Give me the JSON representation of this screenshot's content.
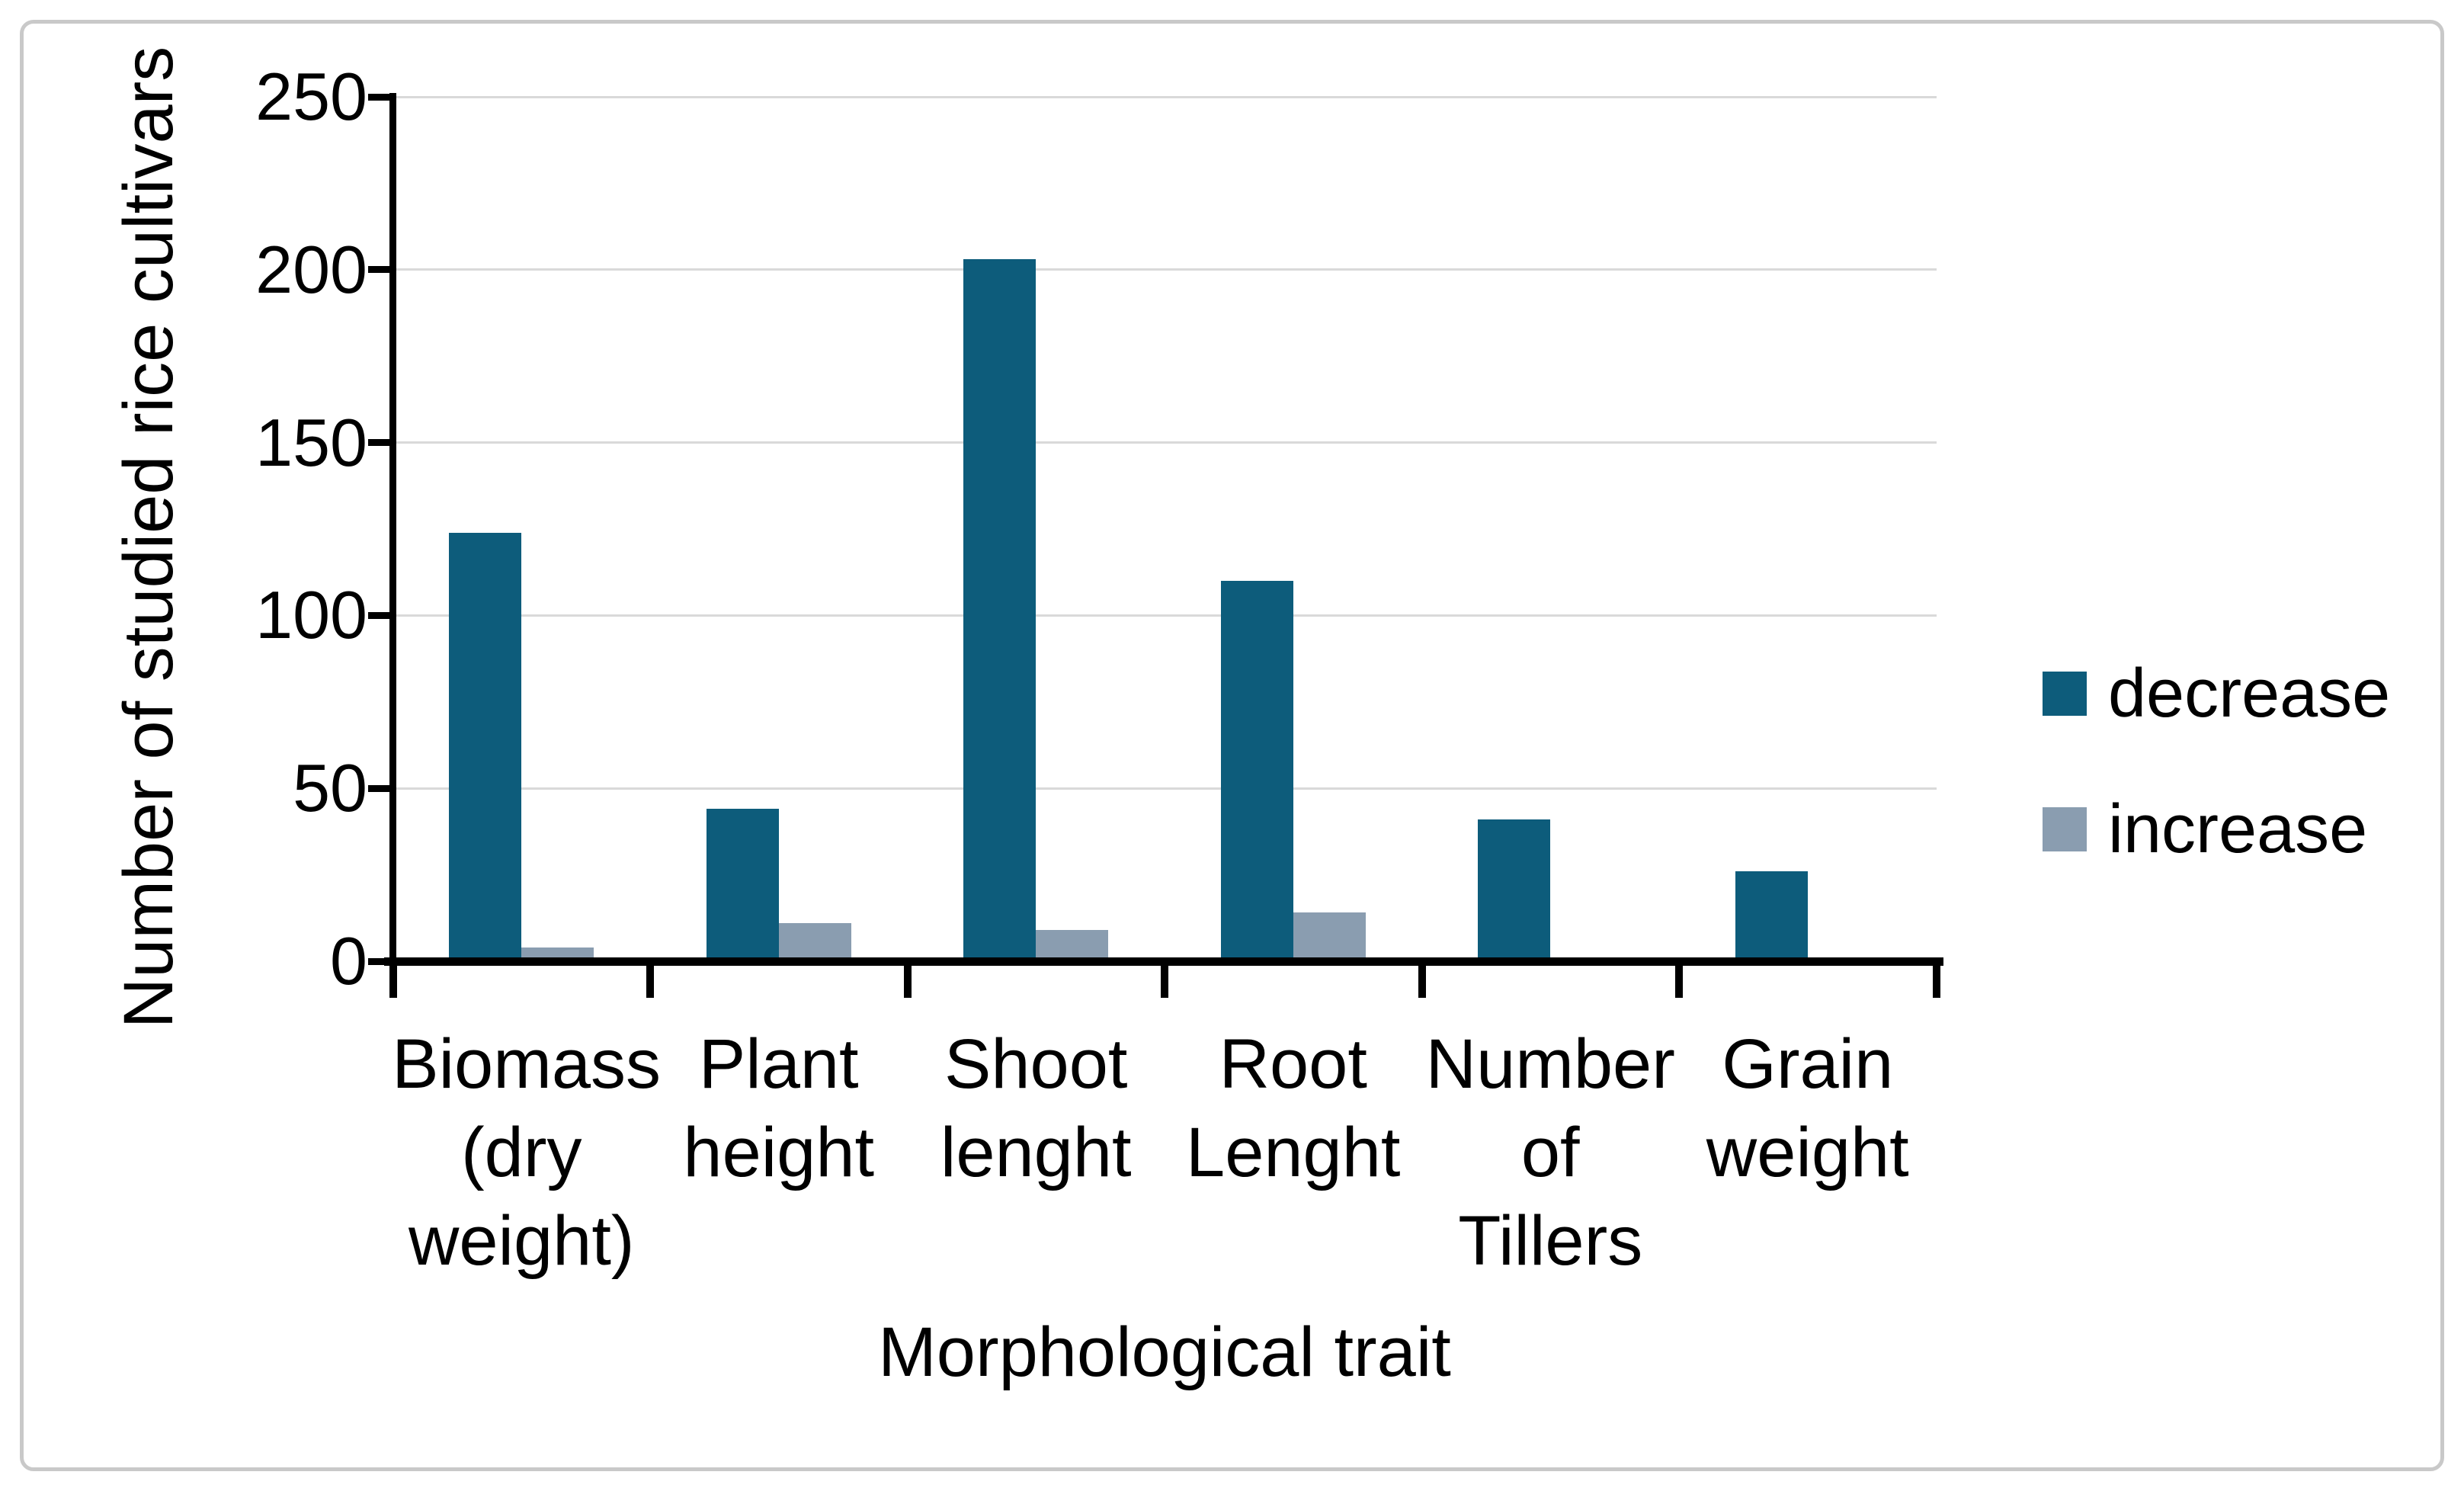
{
  "chart_data": {
    "type": "bar",
    "title": "",
    "categories": [
      "Biomass (dry weight)",
      "Plant height",
      "Shoot lenght",
      "Root Lenght",
      "Number of Tillers",
      "Grain weight"
    ],
    "category_label_lines": [
      [
        "Biomass",
        "(dry",
        "weight)"
      ],
      [
        "Plant",
        "height"
      ],
      [
        "Shoot",
        "lenght"
      ],
      [
        "Root",
        "Lenght"
      ],
      [
        "Number",
        "of Tillers"
      ],
      [
        "Grain",
        "weight"
      ]
    ],
    "series": [
      {
        "name": "decrease",
        "color": "#0d5c7b",
        "values": [
          124,
          44,
          203,
          110,
          41,
          26
        ]
      },
      {
        "name": "increase",
        "color": "#8a9db0",
        "values": [
          4,
          11,
          9,
          14,
          0,
          0
        ]
      }
    ],
    "xlabel": "Morphological trait",
    "ylabel": "Number of studied rice cultivars",
    "ylim": [
      0,
      250
    ],
    "ytick_step": 50,
    "ytick_labels": [
      "0",
      "50",
      "100",
      "150",
      "200",
      "250"
    ],
    "grid": true,
    "gridline_color": "#d9d9d9",
    "axis_color": "#000000",
    "legend_position": "right",
    "background": "#ffffff",
    "border_color": "#c9c9c9"
  }
}
